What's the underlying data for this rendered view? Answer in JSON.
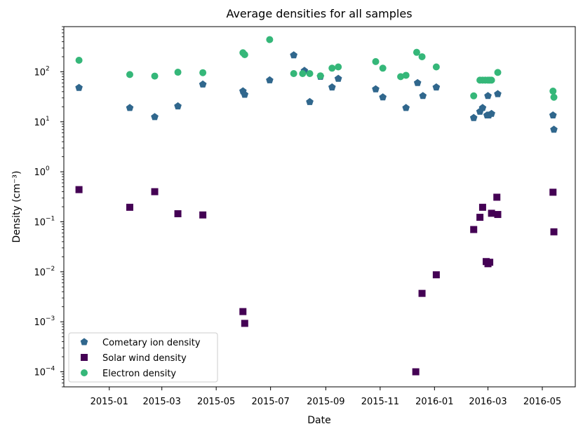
{
  "chart_data": {
    "type": "scatter",
    "title": "Average densities for all samples",
    "xlabel": "Date",
    "ylabel": "Density (cm⁻³)",
    "yscale": "log",
    "ylim": [
      5e-05,
      800
    ],
    "xlim": [
      "2014-11-11",
      "2016-06-07"
    ],
    "x_ticks": [
      {
        "date": "2015-01-01",
        "label": "2015-01"
      },
      {
        "date": "2015-03-01",
        "label": "2015-03"
      },
      {
        "date": "2015-05-01",
        "label": "2015-05"
      },
      {
        "date": "2015-07-01",
        "label": "2015-07"
      },
      {
        "date": "2015-09-01",
        "label": "2015-09"
      },
      {
        "date": "2015-11-01",
        "label": "2015-11"
      },
      {
        "date": "2016-01-01",
        "label": "2016-01"
      },
      {
        "date": "2016-03-01",
        "label": "2016-03"
      },
      {
        "date": "2016-05-01",
        "label": "2016-05"
      }
    ],
    "y_ticks": [
      {
        "value": 0.0001,
        "base": "10",
        "exp": "−4"
      },
      {
        "value": 0.001,
        "base": "10",
        "exp": "−3"
      },
      {
        "value": 0.01,
        "base": "10",
        "exp": "−2"
      },
      {
        "value": 0.1,
        "base": "10",
        "exp": "−1"
      },
      {
        "value": 1,
        "base": "10",
        "exp": "0"
      },
      {
        "value": 10,
        "base": "10",
        "exp": "1"
      },
      {
        "value": 100,
        "base": "10",
        "exp": "2"
      }
    ],
    "legend_position": "lower-left",
    "series": [
      {
        "name": "Cometary ion density",
        "marker": "pentagon",
        "color": "#30678d",
        "points": [
          [
            "2014-11-28",
            48
          ],
          [
            "2015-01-24",
            19
          ],
          [
            "2015-02-21",
            12.5
          ],
          [
            "2015-03-19",
            20.5
          ],
          [
            "2015-04-16",
            56
          ],
          [
            "2015-05-31",
            41
          ],
          [
            "2015-06-02",
            35
          ],
          [
            "2015-06-30",
            68
          ],
          [
            "2015-07-27",
            215
          ],
          [
            "2015-08-08",
            105
          ],
          [
            "2015-08-14",
            25
          ],
          [
            "2015-08-26",
            80
          ],
          [
            "2015-09-08",
            49
          ],
          [
            "2015-09-15",
            73
          ],
          [
            "2015-10-27",
            45
          ],
          [
            "2015-11-04",
            31
          ],
          [
            "2015-11-30",
            19
          ],
          [
            "2015-12-13",
            60
          ],
          [
            "2015-12-19",
            33
          ],
          [
            "2016-01-03",
            49
          ],
          [
            "2016-02-14",
            12
          ],
          [
            "2016-02-21",
            16
          ],
          [
            "2016-02-24",
            19
          ],
          [
            "2016-02-29",
            13.5
          ],
          [
            "2016-03-01",
            33
          ],
          [
            "2016-03-02",
            13.5
          ],
          [
            "2016-03-05",
            14.5
          ],
          [
            "2016-03-12",
            36
          ],
          [
            "2016-05-13",
            13.5
          ],
          [
            "2016-05-14",
            7
          ]
        ]
      },
      {
        "name": "Solar wind density",
        "marker": "square",
        "color": "#440154",
        "points": [
          [
            "2014-11-28",
            0.44
          ],
          [
            "2015-01-24",
            0.195
          ],
          [
            "2015-02-21",
            0.4
          ],
          [
            "2015-03-19",
            0.145
          ],
          [
            "2015-04-16",
            0.137
          ],
          [
            "2015-05-31",
            0.0016
          ],
          [
            "2015-06-02",
            0.00093
          ],
          [
            "2015-12-11",
            0.0001
          ],
          [
            "2015-12-18",
            0.0037
          ],
          [
            "2016-01-03",
            0.0087
          ],
          [
            "2016-02-14",
            0.07
          ],
          [
            "2016-02-21",
            0.123
          ],
          [
            "2016-02-24",
            0.195
          ],
          [
            "2016-02-28",
            0.016
          ],
          [
            "2016-03-01",
            0.0145
          ],
          [
            "2016-03-03",
            0.0155
          ],
          [
            "2016-03-05",
            0.148
          ],
          [
            "2016-03-11",
            0.31
          ],
          [
            "2016-03-12",
            0.14
          ],
          [
            "2016-05-13",
            0.39
          ],
          [
            "2016-05-14",
            0.063
          ]
        ]
      },
      {
        "name": "Electron density",
        "marker": "circle",
        "color": "#35b779",
        "points": [
          [
            "2014-11-28",
            170
          ],
          [
            "2015-01-24",
            88
          ],
          [
            "2015-02-21",
            82
          ],
          [
            "2015-03-19",
            98
          ],
          [
            "2015-04-16",
            96
          ],
          [
            "2015-05-31",
            240
          ],
          [
            "2015-06-02",
            220
          ],
          [
            "2015-06-30",
            440
          ],
          [
            "2015-07-27",
            92
          ],
          [
            "2015-08-06",
            92
          ],
          [
            "2015-08-14",
            92
          ],
          [
            "2015-08-26",
            83
          ],
          [
            "2015-09-08",
            118
          ],
          [
            "2015-09-15",
            125
          ],
          [
            "2015-10-27",
            160
          ],
          [
            "2015-11-04",
            118
          ],
          [
            "2015-11-24",
            80
          ],
          [
            "2015-11-30",
            85
          ],
          [
            "2015-12-12",
            245
          ],
          [
            "2015-12-18",
            200
          ],
          [
            "2016-01-03",
            125
          ],
          [
            "2016-02-14",
            33
          ],
          [
            "2016-02-21",
            68
          ],
          [
            "2016-02-24",
            68
          ],
          [
            "2016-02-27",
            68
          ],
          [
            "2016-03-01",
            68
          ],
          [
            "2016-03-03",
            68
          ],
          [
            "2016-03-05",
            68
          ],
          [
            "2016-03-12",
            97
          ],
          [
            "2016-05-13",
            41
          ],
          [
            "2016-05-14",
            31
          ]
        ]
      }
    ]
  }
}
